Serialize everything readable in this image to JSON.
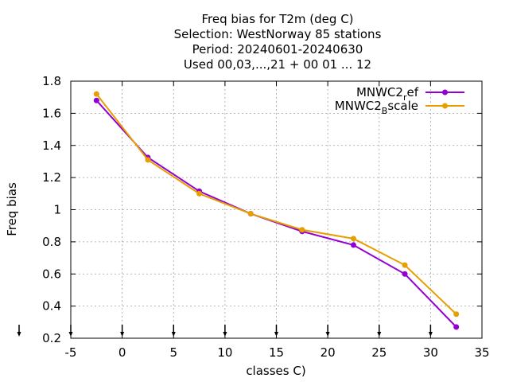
{
  "chart_data": {
    "type": "line",
    "title_lines": [
      "Freq bias  for T2m (deg C)",
      "Selection: WestNorway     85 stations",
      "Period: 20240601-20240630",
      "Used 00,03,...,21 + 00 01 ... 12"
    ],
    "xlabel": "classes C)",
    "ylabel": "Freq bias",
    "xlim": [
      -5,
      35
    ],
    "ylim": [
      0.2,
      1.8
    ],
    "xticks": [
      "-5",
      "0",
      "5",
      "10",
      "15",
      "20",
      "25",
      "30",
      "35"
    ],
    "xtick_values": [
      -5,
      0,
      5,
      10,
      15,
      20,
      25,
      30,
      35
    ],
    "yticks": [
      "0.2",
      "0.4",
      "0.6",
      "0.8",
      "1",
      "1.2",
      "1.4",
      "1.6",
      "1.8"
    ],
    "ytick_values": [
      0.2,
      0.4,
      0.6,
      0.8,
      1.0,
      1.2,
      1.4,
      1.6,
      1.8
    ],
    "grid": true,
    "legend_position": "top-right",
    "class_markers_x": [
      -5,
      0,
      5,
      10,
      15,
      20,
      25,
      30
    ],
    "x": [
      -2.5,
      2.5,
      7.5,
      12.5,
      17.5,
      22.5,
      27.5,
      32.5
    ],
    "series": [
      {
        "name_main": "MNWC2",
        "name_sub": "r",
        "name_rest": "ef",
        "color": "#9400d3",
        "values": [
          1.68,
          1.325,
          1.115,
          0.975,
          0.865,
          0.78,
          0.6,
          0.27
        ]
      },
      {
        "name_main": "MNWC2",
        "name_sub": "B",
        "name_rest": "scale",
        "color": "#e69f00",
        "values": [
          1.72,
          1.31,
          1.1,
          0.975,
          0.875,
          0.82,
          0.655,
          0.35
        ]
      }
    ]
  }
}
